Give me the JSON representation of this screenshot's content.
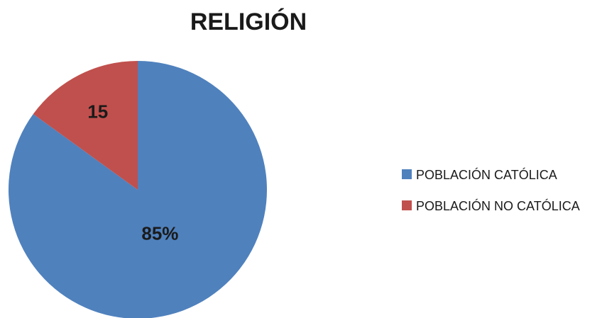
{
  "chart_data": {
    "type": "pie",
    "title": "RELIGIÓN",
    "categories": [
      "POBLACIÓN CATÓLICA",
      "POBLACIÓN NO CATÓLICA"
    ],
    "values": [
      85,
      15
    ],
    "data_labels": [
      "85%",
      "15"
    ],
    "colors": [
      "#4F81BD",
      "#C0504D"
    ],
    "legend_position": "right"
  }
}
